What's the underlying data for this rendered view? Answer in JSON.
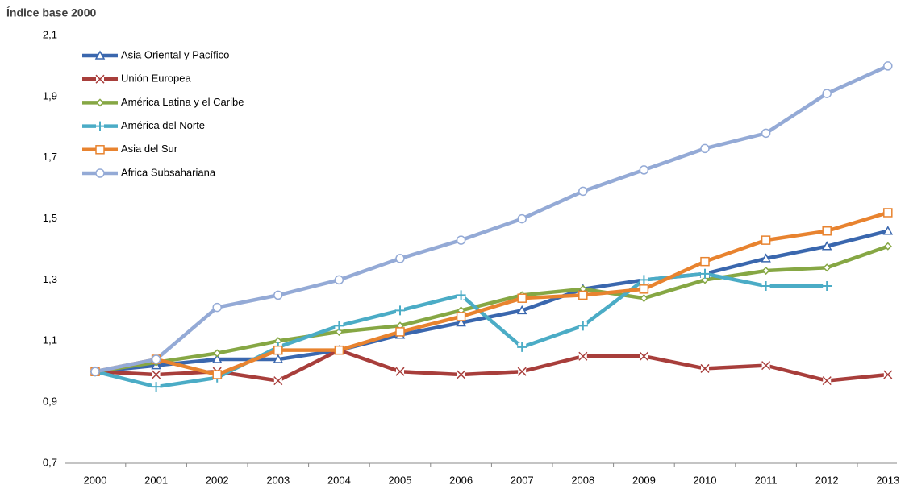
{
  "chart_data": {
    "type": "line",
    "title": "Índice base 2000",
    "categories": [
      "2000",
      "2001",
      "2002",
      "2003",
      "2004",
      "2005",
      "2006",
      "2007",
      "2008",
      "2009",
      "2010",
      "2011",
      "2012",
      "2013"
    ],
    "series": [
      {
        "name": "Asia Oriental y Pacífico",
        "color": "#3a67ae",
        "marker": "triangle",
        "values": [
          1.0,
          1.02,
          1.04,
          1.04,
          1.07,
          1.12,
          1.16,
          1.2,
          1.27,
          1.3,
          1.32,
          1.37,
          1.41,
          1.46
        ]
      },
      {
        "name": "Unión Europea",
        "color": "#a83e3b",
        "marker": "x",
        "values": [
          1.0,
          0.99,
          1.0,
          0.97,
          1.07,
          1.0,
          0.99,
          1.0,
          1.05,
          1.05,
          1.01,
          1.02,
          0.97,
          0.99
        ]
      },
      {
        "name": "América Latina y el Caribe",
        "color": "#86a744",
        "marker": "diamond",
        "values": [
          1.0,
          1.03,
          1.06,
          1.1,
          1.13,
          1.15,
          1.2,
          1.25,
          1.27,
          1.24,
          1.3,
          1.33,
          1.34,
          1.41
        ]
      },
      {
        "name": "América del Norte",
        "color": "#4bacc6",
        "marker": "plus",
        "values": [
          1.0,
          0.95,
          0.98,
          1.08,
          1.15,
          1.2,
          1.25,
          1.08,
          1.15,
          1.3,
          1.32,
          1.28,
          1.28,
          null
        ]
      },
      {
        "name": "Asia del Sur",
        "color": "#e8832f",
        "marker": "square",
        "values": [
          1.0,
          1.04,
          0.99,
          1.07,
          1.07,
          1.13,
          1.18,
          1.24,
          1.25,
          1.27,
          1.36,
          1.43,
          1.46,
          1.52
        ]
      },
      {
        "name": "Africa Subsahariana",
        "color": "#94aad6",
        "marker": "circle",
        "values": [
          1.0,
          1.04,
          1.21,
          1.25,
          1.3,
          1.37,
          1.43,
          1.5,
          1.59,
          1.66,
          1.73,
          1.78,
          1.91,
          2.0
        ]
      }
    ],
    "ylim": [
      0.7,
      2.1
    ],
    "yticks": [
      {
        "value": 0.7,
        "label": "0,7"
      },
      {
        "value": 0.9,
        "label": "0,9"
      },
      {
        "value": 1.1,
        "label": "1,1"
      },
      {
        "value": 1.3,
        "label": "1,3"
      },
      {
        "value": 1.5,
        "label": "1,5"
      },
      {
        "value": 1.7,
        "label": "1,7"
      },
      {
        "value": 1.9,
        "label": "1,9"
      },
      {
        "value": 2.1,
        "label": "2,1"
      }
    ],
    "legend": "upper left",
    "grid": false
  }
}
